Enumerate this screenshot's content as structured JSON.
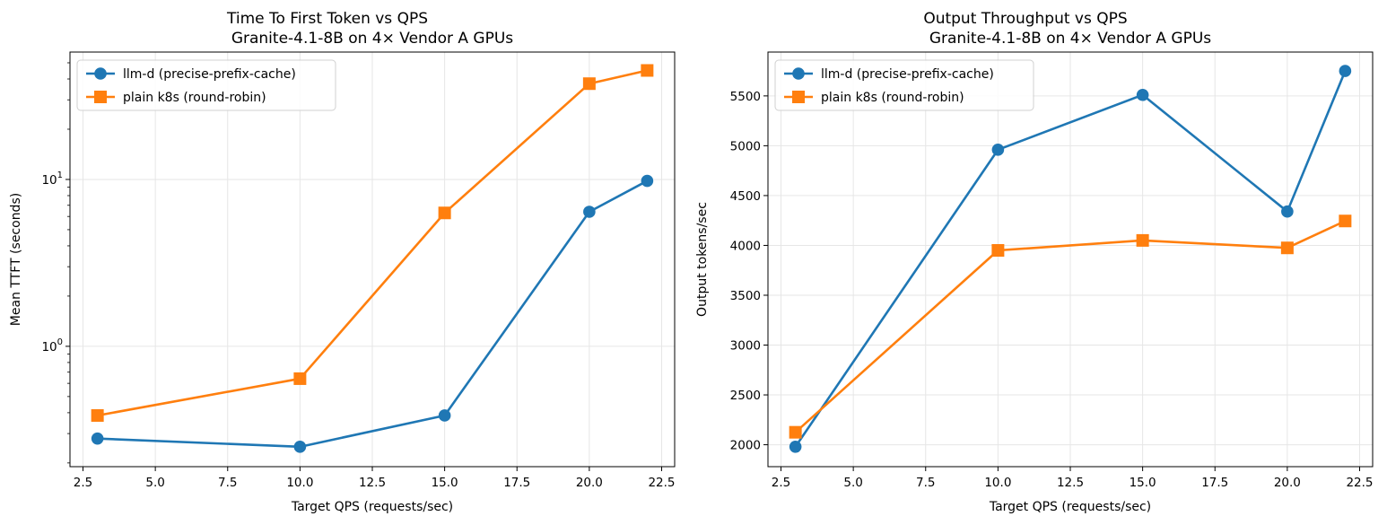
{
  "chart_data": [
    {
      "type": "line",
      "title": "Time To First Token vs QPS",
      "subtitle": "Granite-4.1-8B on 4× Vendor A GPUs",
      "xlabel": "Target QPS (requests/sec)",
      "ylabel": "Mean TTFT (seconds)",
      "yscale": "log",
      "xlim": [
        2.05,
        22.95
      ],
      "ylim": [
        0.19,
        58
      ],
      "xticks": [
        2.5,
        5.0,
        7.5,
        10.0,
        12.5,
        15.0,
        17.5,
        20.0,
        22.5
      ],
      "xtick_labels": [
        "2.5",
        "5.0",
        "7.5",
        "10.0",
        "12.5",
        "15.0",
        "17.5",
        "20.0",
        "22.5"
      ],
      "yticks_major": [
        1,
        10
      ],
      "ytick_labels": [
        {
          "base": "10",
          "exp": "0"
        },
        {
          "base": "10",
          "exp": "1"
        }
      ],
      "yticks_minor": [
        0.2,
        0.3,
        0.4,
        0.5,
        0.6,
        0.7,
        0.8,
        0.9,
        2,
        3,
        4,
        5,
        6,
        7,
        8,
        9,
        20,
        30,
        40,
        50
      ],
      "grid": true,
      "legend": "top-left",
      "x": [
        3,
        10,
        15,
        20,
        22
      ],
      "series": [
        {
          "name": "llm-d (precise-prefix-cache)",
          "color": "#1f77b4",
          "marker": "circle",
          "values": [
            0.28,
            0.25,
            0.385,
            6.4,
            9.8
          ]
        },
        {
          "name": "plain k8s (round-robin)",
          "color": "#ff7f0e",
          "marker": "square",
          "values": [
            0.385,
            0.64,
            6.3,
            37.5,
            45
          ]
        }
      ]
    },
    {
      "type": "line",
      "title": "Output Throughput vs QPS",
      "subtitle": "Granite-4.1-8B on 4× Vendor A GPUs",
      "xlabel": "Target QPS (requests/sec)",
      "ylabel": "Output tokens/sec",
      "yscale": "linear",
      "xlim": [
        2.05,
        22.95
      ],
      "ylim": [
        1780,
        5940
      ],
      "xticks": [
        2.5,
        5.0,
        7.5,
        10.0,
        12.5,
        15.0,
        17.5,
        20.0,
        22.5
      ],
      "xtick_labels": [
        "2.5",
        "5.0",
        "7.5",
        "10.0",
        "12.5",
        "15.0",
        "17.5",
        "20.0",
        "22.5"
      ],
      "yticks": [
        2000,
        2500,
        3000,
        3500,
        4000,
        4500,
        5000,
        5500
      ],
      "ytick_labels": [
        "2000",
        "2500",
        "3000",
        "3500",
        "4000",
        "4500",
        "5000",
        "5500"
      ],
      "grid": true,
      "legend": "top-left",
      "x": [
        3,
        10,
        15,
        20,
        22
      ],
      "series": [
        {
          "name": "llm-d (precise-prefix-cache)",
          "color": "#1f77b4",
          "marker": "circle",
          "values": [
            1980,
            4960,
            5510,
            4340,
            5750
          ]
        },
        {
          "name": "plain k8s (round-robin)",
          "color": "#ff7f0e",
          "marker": "square",
          "values": [
            2125,
            3950,
            4050,
            3975,
            4245
          ]
        }
      ]
    }
  ]
}
